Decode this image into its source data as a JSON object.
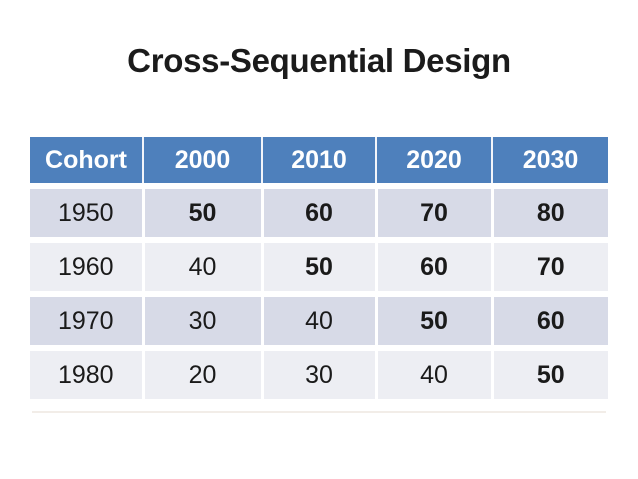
{
  "slide": {
    "title": "Cross-Sequential Design",
    "table": {
      "columns": [
        "Cohort",
        "2000",
        "2010",
        "2020",
        "2030"
      ],
      "rows": [
        {
          "cohort": "1950",
          "band": "dark",
          "cells": [
            {
              "text": "50",
              "red": true
            },
            {
              "text": "60",
              "red": true
            },
            {
              "text": "70",
              "red": true
            },
            {
              "text": "80",
              "red": true
            }
          ]
        },
        {
          "cohort": "1960",
          "band": "light",
          "cells": [
            {
              "text": "40",
              "red": false
            },
            {
              "text": "50",
              "red": true
            },
            {
              "text": "60",
              "red": true
            },
            {
              "text": "70",
              "red": true
            }
          ]
        },
        {
          "cohort": "1970",
          "band": "dark",
          "cells": [
            {
              "text": "30",
              "red": false
            },
            {
              "text": "40",
              "red": false
            },
            {
              "text": "50",
              "red": true
            },
            {
              "text": "60",
              "red": true
            }
          ]
        },
        {
          "cohort": "1980",
          "band": "light",
          "cells": [
            {
              "text": "20",
              "red": false
            },
            {
              "text": "30",
              "red": false
            },
            {
              "text": "40",
              "red": false
            },
            {
              "text": "50",
              "red": true
            }
          ]
        }
      ]
    }
  },
  "colors": {
    "header_bg": "#4E80BC",
    "header_text": "#FFFFFF",
    "band_dark": "#D7DAE7",
    "band_light": "#EDEEF3",
    "body_text": "#1A1A1A",
    "highlight_red": "#E2191F",
    "background": "#FFFFFF"
  },
  "chart_data": {
    "type": "table",
    "title": "Cross-Sequential Design",
    "columns": [
      "Cohort",
      "2000",
      "2010",
      "2020",
      "2030"
    ],
    "rows": [
      [
        "1950",
        "50",
        "60",
        "70",
        "80"
      ],
      [
        "1960",
        "40",
        "50",
        "60",
        "70"
      ],
      [
        "1970",
        "30",
        "40",
        "50",
        "60"
      ],
      [
        "1980",
        "20",
        "30",
        "40",
        "50"
      ]
    ],
    "highlighted": [
      [
        false,
        true,
        true,
        true,
        true
      ],
      [
        false,
        false,
        true,
        true,
        true
      ],
      [
        false,
        false,
        false,
        true,
        true
      ],
      [
        false,
        false,
        false,
        false,
        true
      ]
    ],
    "highlight_color": "#E2191F",
    "legend_position": "none",
    "notes": "Red bold values mark the cross-sequential measurement cells (values 50-80); header row is blue with white text; body rows alternate light blue-gray bands."
  }
}
